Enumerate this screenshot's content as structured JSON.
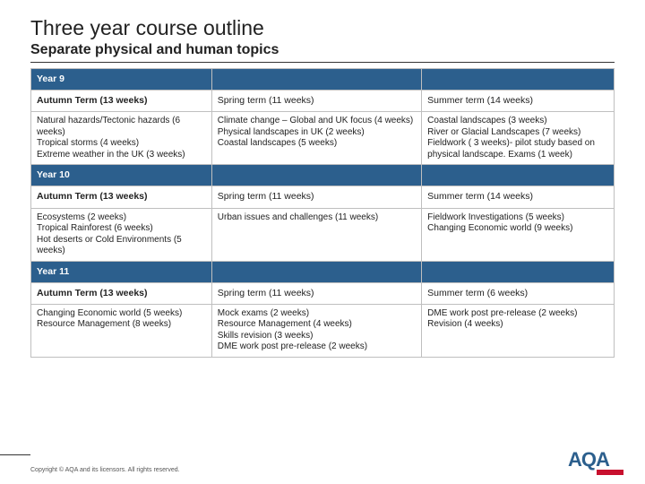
{
  "title": "Three year course outline",
  "subtitle": "Separate physical and human topics",
  "footer": "Copyright © AQA and its licensors. All rights reserved.",
  "logo_text": "AQA",
  "y9": {
    "label": "Year 9",
    "h1": "Autumn Term (13 weeks)",
    "h2": "Spring term (11 weeks)",
    "h3": "Summer term (14 weeks)",
    "c1": "Natural hazards/Tectonic hazards (6 weeks)\nTropical storms (4 weeks)\nExtreme weather in the UK (3 weeks)",
    "c2": "Climate change – Global and UK focus (4 weeks)\nPhysical landscapes in UK (2 weeks)\nCoastal landscapes (5 weeks)",
    "c3": "Coastal landscapes (3 weeks)\nRiver or Glacial Landscapes (7 weeks)\nFieldwork ( 3 weeks)- pilot study based on physical landscape. Exams (1 week)"
  },
  "y10": {
    "label": "Year 10",
    "h1": "Autumn Term (13 weeks)",
    "h2": "Spring term (11 weeks)",
    "h3": "Summer term (14 weeks)",
    "c1": "Ecosystems (2 weeks)\nTropical Rainforest (6 weeks)\nHot deserts or Cold Environments (5 weeks)",
    "c2": "Urban issues and challenges (11 weeks)",
    "c3": "Fieldwork Investigations (5 weeks)\nChanging Economic world (9 weeks)"
  },
  "y11": {
    "label": "Year 11",
    "h1": "Autumn Term (13 weeks)",
    "h2": "Spring term (11 weeks)",
    "h3": "Summer term (6 weeks)",
    "c1": "Changing Economic world (5 weeks)\nResource Management (8 weeks)",
    "c2": "Mock exams (2 weeks)\nResource Management (4 weeks)\nSkills revision (3 weeks)\nDME work post pre-release (2 weeks)",
    "c3": "DME work post pre-release (2 weeks)\nRevision (4 weeks)"
  }
}
